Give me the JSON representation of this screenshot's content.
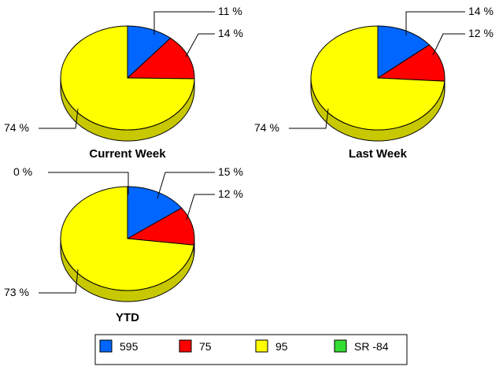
{
  "chart_data": [
    {
      "type": "pie",
      "title": "Current Week",
      "series": [
        {
          "name": "595",
          "value": 11,
          "label": "11 %"
        },
        {
          "name": "75",
          "value": 14,
          "label": "14 %"
        },
        {
          "name": "95",
          "value": 74,
          "label": "74 %"
        },
        {
          "name": "SR-84",
          "value": 0,
          "label": ""
        }
      ]
    },
    {
      "type": "pie",
      "title": "Last Week",
      "series": [
        {
          "name": "595",
          "value": 14,
          "label": "14 %"
        },
        {
          "name": "75",
          "value": 12,
          "label": "12 %"
        },
        {
          "name": "95",
          "value": 74,
          "label": "74 %"
        },
        {
          "name": "SR-84",
          "value": 0,
          "label": ""
        }
      ]
    },
    {
      "type": "pie",
      "title": "YTD",
      "series": [
        {
          "name": "595",
          "value": 15,
          "label": "15 %"
        },
        {
          "name": "75",
          "value": 12,
          "label": "12 %"
        },
        {
          "name": "95",
          "value": 73,
          "label": "73 %"
        },
        {
          "name": "SR-84",
          "value": 0,
          "label": "0 %"
        }
      ]
    }
  ],
  "legend": {
    "placement": "bottom",
    "items": [
      {
        "name": "595",
        "label": "595",
        "color": "#0066ff"
      },
      {
        "name": "75",
        "label": "75",
        "color": "#ff0000"
      },
      {
        "name": "95",
        "label": "95",
        "color": "#ffff00"
      },
      {
        "name": "SR-84",
        "label": "SR -84",
        "color": "#33dd33"
      }
    ]
  },
  "colors": {
    "595": "#0066ff",
    "75": "#ff0000",
    "95": "#ffff00",
    "SR-84": "#33dd33",
    "side_yellow": "#c8c800",
    "side_blue": "#0047b3",
    "side_red": "#b30000"
  }
}
